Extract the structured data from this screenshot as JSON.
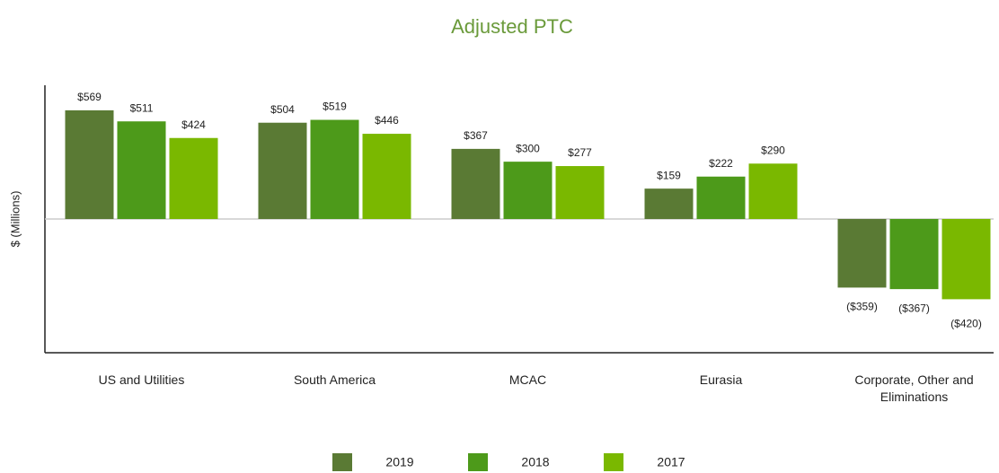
{
  "chart_data": {
    "type": "bar",
    "title": "Adjusted PTC",
    "ylabel": "$ (Millions)",
    "categories": [
      "US and Utilities",
      "South America",
      "MCAC",
      "Eurasia",
      "Corporate, Other and Eliminations"
    ],
    "series": [
      {
        "name": "2019",
        "color": "#5a7a34",
        "values": [
          569,
          504,
          367,
          159,
          -359
        ],
        "value_labels": [
          "$569",
          "$504",
          "$367",
          "$159",
          "($359)"
        ]
      },
      {
        "name": "2018",
        "color": "#4d9a1a",
        "values": [
          511,
          519,
          300,
          222,
          -367
        ],
        "value_labels": [
          "$511",
          "$519",
          "$300",
          "$222",
          "($367)"
        ]
      },
      {
        "name": "2017",
        "color": "#7ab800",
        "values": [
          424,
          446,
          277,
          290,
          -420
        ],
        "value_labels": [
          "$424",
          "$446",
          "$277",
          "$290",
          "($420)"
        ]
      }
    ],
    "ylim": [
      -700,
      700
    ]
  }
}
